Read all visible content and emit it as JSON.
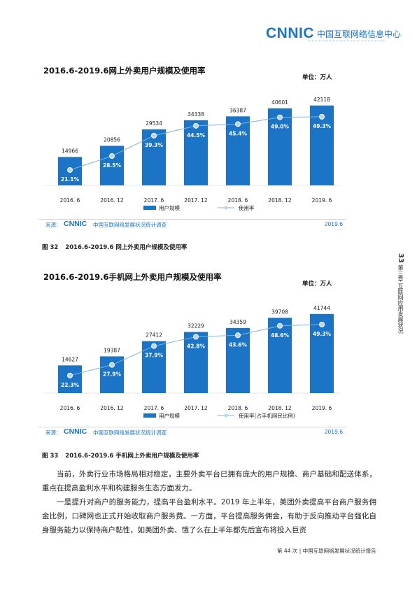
{
  "header": {
    "logo_mark": "CNNIC",
    "logo_cn": "中国互联网络信息中心"
  },
  "charts": [
    {
      "title": "2016.6-2019.6网上外卖用户规模及使用率",
      "unit": "单位：万人",
      "legend": [
        "用户规模",
        "使用率"
      ],
      "source_label": "来源：",
      "source_logo": "CNNIC",
      "source_org": "中国互联网络发展状况统计调查",
      "source_date": "2019.6",
      "caption_num": "图 32",
      "caption_text": "2016.6-2019.6 网上外卖用户规模及使用率"
    },
    {
      "title": "2016.6-2019.6手机网上外卖用户规模及使用率",
      "unit": "单位：万人",
      "legend": [
        "用户规模",
        "使用率(占手机网民比例)"
      ],
      "source_label": "来源：",
      "source_logo": "CNNIC",
      "source_org": "中国互联网络发展状况统计调查",
      "source_date": "2019.6",
      "caption_num": "图 33",
      "caption_text": "2016.6-2019.6 手机网上外卖用户规模及使用率"
    }
  ],
  "chart_data": [
    {
      "type": "bar",
      "title": "2016.6-2019.6网上外卖用户规模及使用率",
      "categories": [
        "2016. 6",
        "2016. 12",
        "2017. 6",
        "2017. 12",
        "2018. 6",
        "2018. 12",
        "2019. 6"
      ],
      "series": [
        {
          "name": "用户规模",
          "type": "bar",
          "values": [
            14966,
            20856,
            29534,
            34338,
            36387,
            40601,
            42118
          ]
        },
        {
          "name": "使用率",
          "type": "line",
          "values": [
            21.1,
            28.5,
            39.3,
            44.5,
            45.4,
            49.0,
            49.3
          ],
          "labels": [
            "21.1%",
            "28.5%",
            "39.3%",
            "44.5%",
            "45.4%",
            "49.0%",
            "49.3%"
          ]
        }
      ],
      "value_labels": [
        "14966",
        "20856",
        "29534",
        "34338",
        "36387",
        "40601",
        "42118"
      ],
      "legend_position": "bottom",
      "colors": {
        "bar": "#1b74c5",
        "line": "#7fb2e2",
        "marker_fill": "#b9d4ef"
      }
    },
    {
      "type": "bar",
      "title": "2016.6-2019.6手机网上外卖用户规模及使用率",
      "categories": [
        "2016. 6",
        "2016. 12",
        "2017. 6",
        "2017. 12",
        "2018. 6",
        "2018. 12",
        "2019. 6"
      ],
      "series": [
        {
          "name": "用户规模",
          "type": "bar",
          "values": [
            14627,
            19387,
            27412,
            32229,
            34359,
            39708,
            41744
          ]
        },
        {
          "name": "使用率(占手机网民比例)",
          "type": "line",
          "values": [
            22.3,
            27.9,
            37.9,
            42.8,
            43.6,
            48.6,
            49.3
          ],
          "labels": [
            "22.3%",
            "27.9%",
            "37.9%",
            "42.8%",
            "43.6%",
            "48.6%",
            "49.3%"
          ]
        }
      ],
      "value_labels": [
        "14627",
        "19387",
        "27412",
        "32229",
        "34359",
        "39708",
        "41744"
      ],
      "legend_position": "bottom",
      "colors": {
        "bar": "#1b74c5",
        "line": "#7fb2e2",
        "marker_fill": "#b9d4ef"
      }
    }
  ],
  "side": {
    "page_num": "33",
    "chapter": "第三章  互联网应用发展状况"
  },
  "body": {
    "p1": "当前，外卖行业市场格局相对稳定，主要外卖平台已拥有庞大的用户规模、商户基础和配送体系，重点在提高盈利水平和构建服务生态方面发力。",
    "p2": "一是提升对商户的服务能力，提高平台盈利水平。2019 年上半年，美团外卖提高平台商户服务佣金比例，口碑网也正式开始收取商户服务费。一方面，平台提高服务佣金，有助于反向推动平台强化自身服务能力以保持商户黏性，如美团外卖、饿了么在上半年都先后宣布将投入巨资"
  },
  "footer": {
    "text": "第 44 次 | 中国互联网络发展状况统计报告"
  }
}
